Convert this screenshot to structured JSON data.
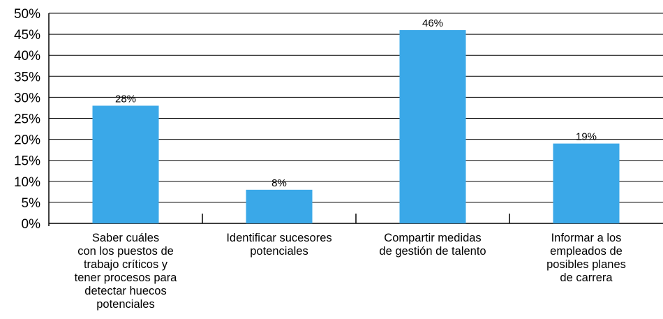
{
  "chart_data": {
    "type": "bar",
    "categories": [
      [
        "Saber cuáles",
        "con los puestos de",
        "trabajo críticos y",
        "tener procesos para",
        "detectar huecos",
        "potenciales"
      ],
      [
        "Identificar sucesores",
        "potenciales"
      ],
      [
        "Compartir medidas",
        "de gestión de talento"
      ],
      [
        "Informar a los",
        "empleados de",
        "posibles planes",
        "de carrera"
      ]
    ],
    "values": [
      28,
      8,
      46,
      19
    ],
    "data_labels": [
      "28%",
      "8%",
      "46%",
      "19%"
    ],
    "ylim": [
      0,
      50
    ],
    "yticks": [
      "0%",
      "5%",
      "10%",
      "15%",
      "20%",
      "25%",
      "30%",
      "35%",
      "40%",
      "45%",
      "50%"
    ],
    "grid": true,
    "bar_color": "#3aa8e8",
    "title": "",
    "xlabel": "",
    "ylabel": ""
  }
}
